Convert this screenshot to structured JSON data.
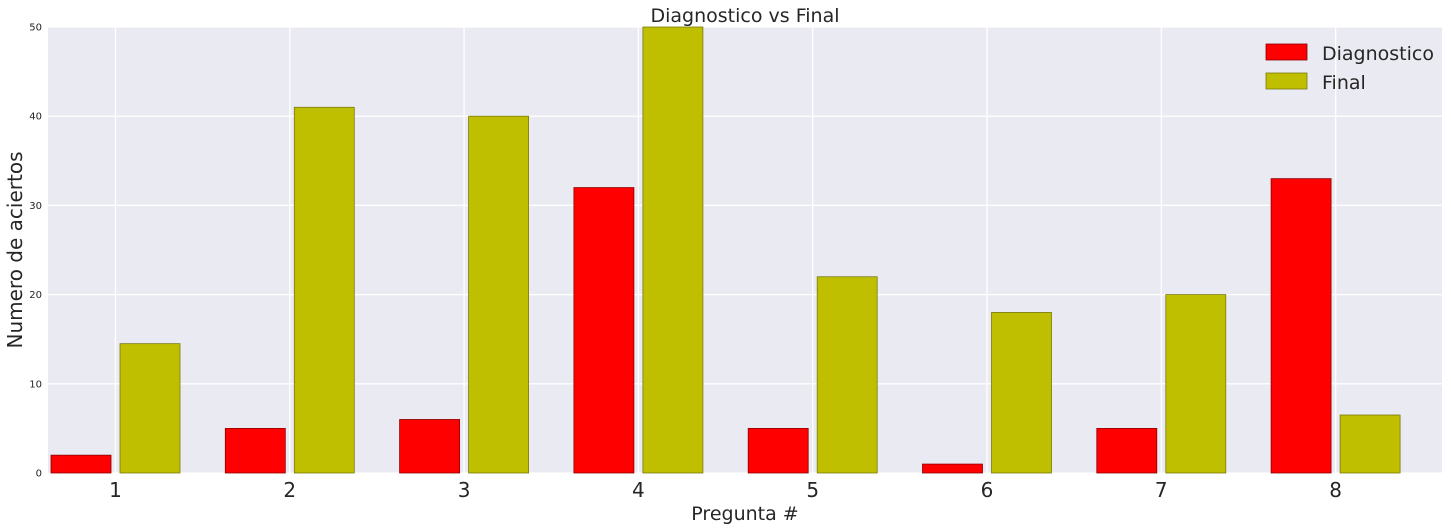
{
  "chart_data": {
    "type": "bar",
    "title": "Diagnostico vs Final",
    "xlabel": "Pregunta #",
    "ylabel": "Numero de aciertos",
    "categories": [
      "1",
      "2",
      "3",
      "4",
      "5",
      "6",
      "7",
      "8"
    ],
    "series": [
      {
        "name": "Diagnostico",
        "color": "#ff0000",
        "values": [
          2,
          5,
          6,
          32,
          5,
          1,
          5,
          33
        ]
      },
      {
        "name": "Final",
        "color": "#bfbf00",
        "values": [
          14.5,
          41,
          40,
          50,
          22,
          18,
          20,
          6.5
        ]
      }
    ],
    "ylim": [
      0,
      50
    ],
    "yticks": [
      "0",
      "10",
      "20",
      "30",
      "40",
      "50"
    ],
    "grid": true,
    "legend": "top-right",
    "background": "#eaeaf2"
  }
}
